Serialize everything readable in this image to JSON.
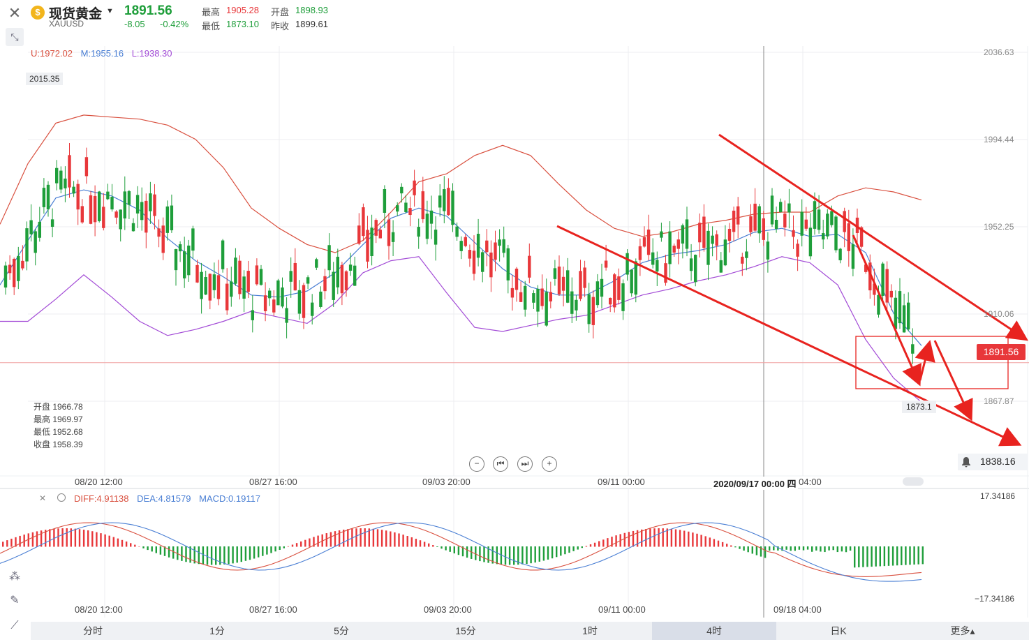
{
  "header": {
    "title": "现货黄金",
    "symbol": "XAUUSD",
    "price": "1891.56",
    "change": "-8.05",
    "change_pct": "-0.42%",
    "high_label": "最高",
    "high_value": "1905.28",
    "open_label": "开盘",
    "open_value": "1898.93",
    "low_label": "最低",
    "low_value": "1873.10",
    "prev_close_label": "昨收",
    "prev_close_value": "1899.61"
  },
  "boll_legend": {
    "upper": "U:1972.02",
    "middle": "M:1955.16",
    "lower": "L:1938.30"
  },
  "ohlc_box": {
    "open": "开盘 1966.78",
    "high": "最高 1969.97",
    "low": "最低 1952.68",
    "close": "收盘 1958.39"
  },
  "annotations": {
    "max_label": "2015.35",
    "min_label": "1873.1"
  },
  "y_axis": [
    "2036.63",
    "1994.44",
    "1952.25",
    "1910.06",
    "1867.87"
  ],
  "x_axis": [
    "08/20 12:00",
    "08/27 16:00",
    "09/03 20:00",
    "09/11 00:00",
    "09/18 04:00"
  ],
  "crosshair_date": "2020/09/17 00:00 四",
  "current_price_tag": "1891.56",
  "alert_value": "1838.16",
  "macd_legend": {
    "diff": "DIFF:4.91138",
    "dea": "DEA:4.81579",
    "macd": "MACD:0.19117"
  },
  "macd_axis": {
    "top": "17.34186",
    "bottom": "−17.34186"
  },
  "tabs": [
    "分时",
    "1分",
    "5分",
    "15分",
    "1时",
    "4时",
    "日K",
    "更多▴"
  ],
  "active_tab": "4时",
  "colors": {
    "up": "#e8373a",
    "down": "#1e9e3a",
    "upper_band": "#d9503f",
    "middle_band": "#4a7fd4",
    "lower_band": "#a24ad6",
    "arrow": "#e8231f"
  },
  "icons": [
    "close-icon",
    "collapse-icon",
    "gold-icon",
    "settings-icon",
    "bell-icon",
    "zoom-out-icon",
    "prev-icon",
    "next-icon",
    "zoom-in-icon",
    "pen-icon",
    "line-tool-icon"
  ],
  "chart_data": {
    "type": "candlestick",
    "main": {
      "ylim": [
        1838,
        2045
      ],
      "current_price": 1891.56,
      "bands_upper": [
        1960,
        1990,
        2010,
        2014,
        2013,
        2012,
        2009,
        2002,
        1988,
        1968,
        1958,
        1950,
        1946,
        1952,
        1966,
        1981,
        1985,
        1994,
        1999,
        1994,
        1980,
        1967,
        1958,
        1954,
        1956,
        1960,
        1962,
        1965,
        1966,
        1966,
        1974,
        1978,
        1976,
        1972
      ],
      "bands_middle": [
        1930,
        1952,
        1973,
        1977,
        1974,
        1967,
        1953,
        1942,
        1934,
        1925,
        1924,
        1927,
        1936,
        1950,
        1963,
        1968,
        1964,
        1951,
        1938,
        1929,
        1925,
        1925,
        1932,
        1941,
        1945,
        1947,
        1950,
        1956,
        1958,
        1954,
        1955,
        1946,
        1916,
        1900
      ],
      "bands_lower": [
        1912,
        1912,
        1923,
        1935,
        1924,
        1912,
        1905,
        1908,
        1912,
        1917,
        1914,
        1911,
        1921,
        1936,
        1942,
        1944,
        1926,
        1909,
        1907,
        1910,
        1913,
        1915,
        1920,
        1925,
        1928,
        1932,
        1935,
        1939,
        1944,
        1941,
        1930,
        1903,
        1884,
        1872
      ]
    },
    "macd": {
      "ylim": [
        -17.34186,
        17.34186
      ]
    }
  }
}
